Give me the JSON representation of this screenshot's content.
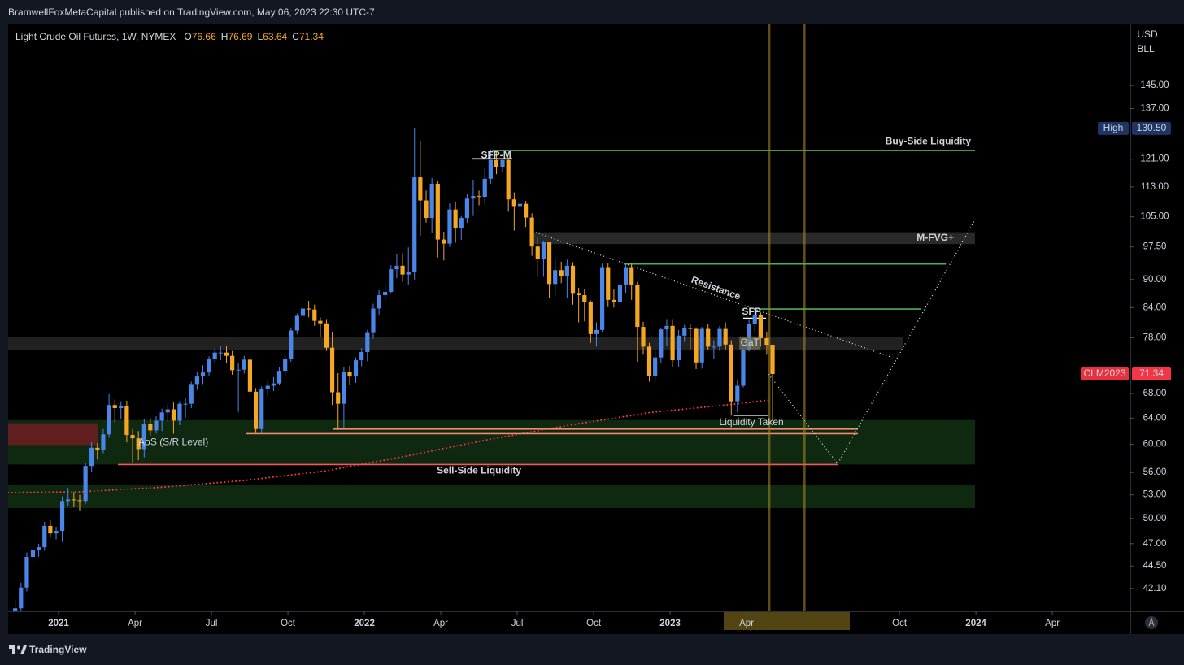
{
  "header": {
    "text": "BramwellFoxMetaCapital published on TradingView.com, May 06, 2023 22:30 UTC-7"
  },
  "footer": {
    "brand": "TradingView"
  },
  "chart_data": {
    "type": "candlestick",
    "title": "Light Crude Oil Futures, 1W, NYMEX",
    "legend": [
      {
        "label": "O",
        "value": 76.66
      },
      {
        "label": "H",
        "value": 76.69
      },
      {
        "label": "L",
        "value": 63.64
      },
      {
        "label": "C",
        "value": 71.34
      }
    ],
    "currency": "USD",
    "unit": "BLL",
    "up_color": "#4a86e8",
    "down_color": "#f5a623",
    "log_scale": true,
    "xlim": [
      2020.835,
      2024.505
    ],
    "xticks": [
      2021,
      {
        "value": 2021.25,
        "label": "Apr"
      },
      {
        "value": 2021.5,
        "label": "Jul"
      },
      {
        "value": 2021.75,
        "label": "Oct"
      },
      2022,
      {
        "value": 2022.25,
        "label": "Apr"
      },
      {
        "value": 2022.5,
        "label": "Jul"
      },
      {
        "value": 2022.75,
        "label": "Oct"
      },
      2023,
      {
        "value": 2023.25,
        "label": "Apr"
      },
      {
        "value": 2023.75,
        "label": "Oct"
      },
      2024,
      {
        "value": 2024.25,
        "label": "Apr"
      }
    ],
    "ylim": [
      39.8,
      168.5
    ],
    "yticks": [
      {
        "value": 145,
        "label": "145.00"
      },
      {
        "value": 137,
        "label": "137.00"
      },
      {
        "value": 121,
        "label": "121.00"
      },
      {
        "value": 113,
        "label": "113.00"
      },
      {
        "value": 105,
        "label": "105.00"
      },
      {
        "value": 97.5,
        "label": "97.50"
      },
      {
        "value": 90,
        "label": "90.00"
      },
      {
        "value": 84,
        "label": "84.00"
      },
      {
        "value": 78,
        "label": "78.00"
      },
      {
        "value": 68,
        "label": "68.00"
      },
      {
        "value": 64,
        "label": "64.00"
      },
      {
        "value": 60,
        "label": "60.00"
      },
      {
        "value": 56,
        "label": "56.00"
      },
      {
        "value": 53,
        "label": "53.00"
      },
      {
        "value": 50,
        "label": "50.00"
      },
      {
        "value": 47,
        "label": "47.00"
      },
      {
        "value": 44.5,
        "label": "44.50"
      },
      {
        "value": 42.1,
        "label": "42.10"
      }
    ],
    "x": [
      2020.858,
      2020.877,
      2020.896,
      2020.916,
      2020.935,
      2020.954,
      2020.973,
      2020.992,
      2021.012,
      2021.031,
      2021.05,
      2021.069,
      2021.088,
      2021.108,
      2021.127,
      2021.146,
      2021.165,
      2021.184,
      2021.204,
      2021.223,
      2021.242,
      2021.261,
      2021.28,
      2021.3,
      2021.319,
      2021.338,
      2021.357,
      2021.376,
      2021.396,
      2021.415,
      2021.434,
      2021.453,
      2021.472,
      2021.492,
      2021.511,
      2021.53,
      2021.549,
      2021.568,
      2021.588,
      2021.607,
      2021.626,
      2021.645,
      2021.664,
      2021.684,
      2021.703,
      2021.722,
      2021.741,
      2021.76,
      2021.78,
      2021.799,
      2021.818,
      2021.837,
      2021.856,
      2021.876,
      2021.895,
      2021.914,
      2021.933,
      2021.952,
      2021.972,
      2021.991,
      2022.01,
      2022.029,
      2022.048,
      2022.068,
      2022.087,
      2022.106,
      2022.125,
      2022.144,
      2022.164,
      2022.183,
      2022.202,
      2022.221,
      2022.24,
      2022.26,
      2022.279,
      2022.298,
      2022.317,
      2022.336,
      2022.356,
      2022.375,
      2022.394,
      2022.413,
      2022.432,
      2022.452,
      2022.471,
      2022.49,
      2022.509,
      2022.528,
      2022.548,
      2022.567,
      2022.586,
      2022.605,
      2022.624,
      2022.644,
      2022.663,
      2022.682,
      2022.701,
      2022.72,
      2022.74,
      2022.759,
      2022.778,
      2022.797,
      2022.816,
      2022.836,
      2022.855,
      2022.874,
      2022.893,
      2022.912,
      2022.932,
      2022.951,
      2022.97,
      2022.989,
      2023.008,
      2023.028,
      2023.047,
      2023.066,
      2023.085,
      2023.104,
      2023.124,
      2023.143,
      2023.162,
      2023.181,
      2023.2,
      2023.22,
      2023.239,
      2023.258,
      2023.277,
      2023.296,
      2023.316,
      2023.335
    ],
    "open": [
      39.0,
      40.1,
      42.2,
      45.5,
      46.3,
      46.6,
      49.1,
      48.2,
      48.5,
      52.2,
      52.4,
      52.3,
      52.2,
      56.9,
      59.5,
      59.2,
      61.5,
      66.1,
      65.6,
      66.0,
      61.4,
      60.9,
      59.3,
      63.1,
      62.1,
      63.6,
      64.9,
      65.4,
      63.6,
      66.3,
      66.3,
      69.6,
      70.9,
      71.6,
      74.0,
      75.2,
      75.2,
      74.6,
      72.0,
      72.1,
      73.9,
      68.3,
      62.3,
      68.7,
      69.3,
      69.7,
      71.9,
      74.0,
      79.4,
      82.3,
      83.8,
      83.6,
      81.3,
      80.8,
      76.1,
      68.2,
      66.3,
      71.7,
      70.9,
      73.8,
      75.3,
      78.9,
      83.8,
      86.6,
      87.3,
      92.3,
      93.1,
      91.1,
      91.6,
      115.7,
      109.3,
      104.7,
      113.9,
      99.3,
      98.3,
      106.9,
      102.1,
      104.7,
      109.8,
      110.5,
      110.3,
      115.3,
      120.7,
      118.7,
      120.7,
      109.6,
      107.6,
      108.4,
      104.8,
      97.6,
      94.7,
      98.6,
      89.0,
      92.1,
      90.8,
      93.1,
      86.9,
      86.6,
      85.1,
      78.7,
      79.5,
      92.6,
      85.6,
      85.1,
      88.9,
      92.6,
      88.9,
      80.1,
      76.3,
      71.0,
      74.3,
      79.6,
      80.3,
      73.8,
      78.4,
      79.9,
      79.7,
      73.4,
      79.7,
      76.3,
      76.3,
      79.7,
      76.7,
      66.7,
      69.3,
      75.7,
      80.7,
      82.5,
      77.9,
      76.66
    ],
    "high": [
      41.0,
      42.7,
      46.0,
      46.8,
      47.0,
      49.6,
      49.8,
      49.0,
      52.8,
      53.9,
      53.4,
      53.0,
      57.4,
      60.3,
      60.2,
      62.3,
      67.9,
      67.0,
      66.7,
      66.8,
      62.3,
      62.0,
      63.8,
      64.0,
      64.3,
      65.5,
      66.2,
      66.5,
      66.7,
      67.3,
      70.0,
      71.8,
      72.9,
      74.5,
      76.0,
      76.4,
      76.5,
      75.5,
      73.3,
      74.6,
      74.5,
      68.9,
      69.2,
      70.2,
      70.8,
      72.5,
      74.6,
      80.0,
      82.8,
      84.9,
      85.4,
      84.6,
      82.0,
      81.5,
      79.0,
      71.5,
      72.5,
      72.8,
      74.3,
      76.0,
      79.5,
      84.8,
      87.7,
      89.1,
      93.2,
      95.8,
      96.0,
      97.4,
      130.5,
      126.6,
      112.0,
      115.5,
      114.6,
      101.2,
      108.5,
      109.0,
      105.2,
      111.0,
      114.9,
      112.0,
      118.3,
      123.7,
      123.0,
      121.0,
      121.5,
      111.5,
      109.8,
      109.2,
      105.9,
      100.0,
      99.0,
      98.6,
      95.0,
      94.0,
      94.5,
      93.9,
      88.2,
      88.0,
      85.5,
      81.0,
      93.6,
      93.7,
      87.8,
      89.0,
      93.7,
      93.7,
      89.5,
      81.1,
      77.0,
      75.8,
      79.8,
      81.5,
      81.5,
      79.5,
      80.5,
      80.6,
      80.0,
      80.1,
      80.6,
      77.5,
      80.3,
      81.0,
      77.5,
      70.3,
      76.0,
      81.5,
      83.4,
      83.0,
      79.0,
      76.69
    ],
    "low": [
      38.5,
      39.6,
      41.8,
      44.7,
      45.5,
      46.2,
      47.8,
      47.5,
      47.2,
      51.5,
      51.4,
      51.0,
      51.8,
      56.1,
      57.8,
      58.7,
      61.0,
      63.3,
      63.8,
      60.3,
      57.3,
      57.7,
      58.1,
      61.3,
      61.6,
      62.0,
      63.4,
      61.6,
      62.9,
      64.0,
      65.6,
      68.6,
      69.6,
      71.0,
      73.2,
      73.8,
      73.2,
      71.2,
      65.0,
      71.4,
      67.5,
      61.7,
      61.7,
      67.6,
      68.4,
      69.5,
      71.0,
      73.5,
      78.7,
      80.7,
      82.0,
      80.3,
      78.2,
      75.5,
      66.1,
      62.4,
      62.4,
      69.4,
      69.8,
      72.7,
      73.6,
      77.8,
      82.4,
      85.5,
      86.9,
      90.3,
      89.5,
      88.9,
      90.0,
      100.2,
      103.5,
      101.0,
      95.0,
      94.3,
      97.5,
      98.5,
      99.2,
      103.5,
      105.2,
      108.0,
      108.3,
      113.9,
      116.6,
      117.1,
      106.3,
      101.5,
      103.5,
      102.4,
      95.4,
      90.6,
      90.6,
      86.0,
      86.5,
      89.2,
      85.9,
      84.6,
      81.0,
      81.2,
      77.0,
      76.3,
      79.0,
      84.1,
      84.0,
      84.0,
      87.0,
      85.6,
      73.5,
      74.8,
      70.0,
      70.1,
      73.3,
      76.5,
      72.5,
      72.5,
      77.2,
      75.8,
      72.2,
      72.3,
      75.6,
      74.0,
      75.5,
      75.8,
      64.4,
      64.9,
      69.0,
      75.4,
      79.0,
      76.3,
      74.8,
      63.64
    ],
    "close": [
      40.1,
      42.2,
      45.5,
      46.3,
      46.6,
      49.1,
      48.2,
      48.5,
      52.2,
      52.4,
      52.3,
      52.2,
      56.9,
      59.5,
      59.2,
      61.5,
      66.1,
      65.6,
      66.0,
      61.4,
      60.9,
      59.3,
      63.1,
      62.1,
      63.6,
      64.9,
      65.4,
      63.6,
      66.3,
      66.3,
      69.6,
      70.9,
      71.6,
      74.0,
      75.2,
      75.2,
      74.6,
      72.0,
      72.1,
      73.9,
      68.3,
      62.3,
      68.7,
      69.3,
      69.7,
      71.9,
      74.0,
      79.4,
      82.3,
      83.8,
      83.6,
      81.3,
      80.8,
      76.1,
      68.2,
      66.3,
      71.7,
      70.9,
      73.8,
      75.3,
      78.9,
      83.8,
      86.6,
      87.3,
      92.3,
      93.1,
      91.1,
      91.6,
      115.7,
      109.3,
      104.7,
      113.9,
      99.3,
      98.3,
      106.9,
      102.1,
      104.7,
      109.8,
      110.5,
      110.3,
      115.3,
      120.7,
      118.7,
      120.7,
      109.6,
      107.6,
      108.4,
      104.8,
      97.6,
      94.7,
      98.6,
      89.0,
      92.1,
      90.8,
      93.1,
      86.9,
      86.6,
      85.1,
      78.7,
      79.5,
      92.6,
      85.6,
      85.1,
      88.9,
      92.6,
      88.9,
      80.1,
      76.3,
      71.0,
      74.3,
      79.6,
      80.3,
      73.8,
      78.4,
      79.9,
      79.7,
      73.4,
      79.7,
      76.3,
      76.3,
      79.7,
      76.7,
      66.7,
      69.3,
      75.7,
      80.7,
      82.5,
      77.9,
      76.66,
      71.34
    ],
    "moving_average": {
      "color": "#f23645",
      "x": [
        2020.835,
        2021.074,
        2021.34,
        2021.606,
        2021.872,
        2022.138,
        2022.404,
        2022.67,
        2022.936,
        2023.202,
        2023.322
      ],
      "values": [
        53.3,
        53.4,
        54.0,
        54.9,
        56.2,
        58.3,
        60.7,
        62.9,
        64.9,
        66.2,
        66.9
      ]
    },
    "zones": [
      {
        "x": [
          2020.835,
          2023.761
        ],
        "y": [
          75.7,
          78.2
        ],
        "color": "rgba(255,255,255,0.13)"
      },
      {
        "x": [
          2022.551,
          2023.997
        ],
        "y": [
          98.2,
          101.1
        ],
        "color": "rgba(255,255,255,0.16)",
        "label": "M-FVG+"
      },
      {
        "x": [
          2020.835,
          2023.997
        ],
        "y": [
          57.1,
          63.7
        ],
        "color": "rgba(46,125,50,0.32)"
      },
      {
        "x": [
          2020.835,
          2023.997
        ],
        "y": [
          51.3,
          54.3
        ],
        "color": "rgba(46,125,50,0.32)"
      },
      {
        "x": [
          2020.835,
          2021.128
        ],
        "y": [
          59.9,
          63.2
        ],
        "color": "rgba(150,25,40,0.6)"
      }
    ],
    "lines": [
      {
        "x": [
          2022.418,
          2023.997
        ],
        "y": [
          123.6,
          123.6
        ],
        "color": "#4caf50",
        "dashed": false
      },
      {
        "x": [
          2022.848,
          2023.902
        ],
        "y": [
          93.5,
          93.5
        ],
        "color": "#4caf50",
        "dashed": false
      },
      {
        "x": [
          2023.295,
          2023.822
        ],
        "y": [
          83.7,
          83.7
        ],
        "color": "#4caf50",
        "dashed": false
      },
      {
        "x": [
          2021.899,
          2023.614
        ],
        "y": [
          62.3,
          62.3
        ],
        "color": "#f08a70",
        "dashed": false
      },
      {
        "x": [
          2021.612,
          2023.614
        ],
        "y": [
          61.6,
          61.6
        ],
        "color": "#f08a70",
        "dashed": false
      },
      {
        "x": [
          2021.194,
          2023.548
        ],
        "y": [
          57.1,
          57.1
        ],
        "color": "#f05a5a",
        "dashed": false
      },
      {
        "x": [
          2022.551,
          2023.721
        ],
        "y": [
          101.3,
          74.4
        ],
        "color": "#dddddd",
        "dashed": true
      },
      {
        "x": [
          2023.322,
          2023.548,
          2024.0
        ],
        "y": [
          71.3,
          57.2,
          104.7
        ],
        "color": "#dddddd",
        "dashed": true
      },
      {
        "x": [
          2022.351,
          2022.484
        ],
        "y": [
          121.1,
          121.1
        ],
        "color": "#ffffff",
        "dashed": false
      },
      {
        "x": [
          2023.239,
          2023.314
        ],
        "y": [
          81.8,
          81.8
        ],
        "color": "#ffffff",
        "dashed": false
      },
      {
        "x": [
          2023.209,
          2023.322
        ],
        "y": [
          64.4,
          64.4
        ],
        "color": "#9aa0a6",
        "dashed": false
      },
      {
        "x": [
          2023.324,
          2023.324
        ],
        "y": [
          39.8,
          168.5
        ],
        "color": "rgba(170,140,40,0.55)",
        "dashed": false
      },
      {
        "x": [
          2023.439,
          2023.439
        ],
        "y": [
          39.8,
          168.5
        ],
        "color": "rgba(170,140,40,0.55)",
        "dashed": false
      }
    ],
    "annotations": [
      {
        "text": "SFP-M",
        "x": 2022.431,
        "y": 122.1,
        "color": "#ffffff",
        "bold": true,
        "anchor": "middle"
      },
      {
        "text": "Buy-Side Liquidity",
        "x": 2023.984,
        "y": 126.3,
        "color": "#ffffff",
        "bold": true,
        "anchor": "end"
      },
      {
        "text": "Resistance",
        "x": 2023.149,
        "y": 88.0,
        "color": "#ffffff",
        "bold": true,
        "anchor": "middle",
        "angle": 20
      },
      {
        "text": "SFP",
        "x": 2023.266,
        "y": 83.1,
        "color": "#ffffff",
        "bold": true,
        "anchor": "middle"
      },
      {
        "text": "GaT",
        "x": 2023.261,
        "y": 77.0,
        "color": "#cfcfcf",
        "bold": false,
        "anchor": "middle",
        "background": "rgba(120,120,90,0.7)"
      },
      {
        "text": "Liquidity Taken",
        "x": 2023.266,
        "y": 63.3,
        "color": "#6f7378",
        "bold": false,
        "anchor": "middle"
      },
      {
        "text": "AoS (S/R Level)",
        "x": 2021.261,
        "y": 60.3,
        "color": "#8a8e94",
        "bold": false,
        "anchor": "start"
      },
      {
        "text": "Sell-Side Liquidity",
        "x": 2022.375,
        "y": 56.2,
        "color": "#ffffff",
        "bold": true,
        "anchor": "middle"
      }
    ],
    "price_labels": [
      {
        "label": "High",
        "value": 130.5,
        "value_label": "130.50",
        "color": "#1e3566",
        "value_color": "#1e3566"
      },
      {
        "label": "CLM2023",
        "value": 71.34,
        "value_label": "71.34",
        "color": "#e8313f",
        "value_color": "#f23645"
      }
    ]
  }
}
